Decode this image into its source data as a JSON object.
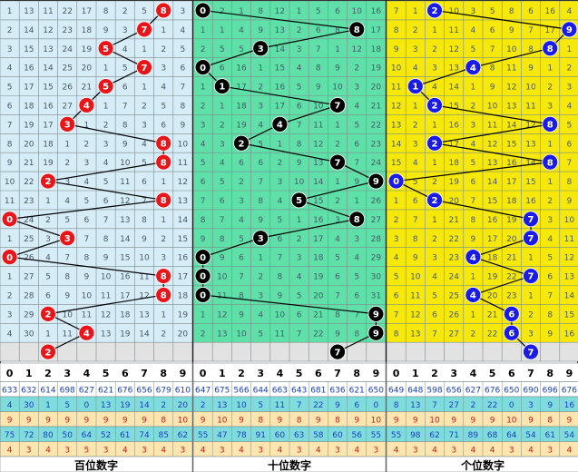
{
  "chart_data": {
    "type": "table",
    "sections": [
      {
        "title": "百位数字",
        "bg": "#d6ecf7",
        "ball_color": "#e8161b",
        "wins": [
          8,
          7,
          5,
          7,
          5,
          4,
          3,
          8,
          8,
          2,
          8,
          0,
          3,
          0,
          8,
          8,
          2,
          4,
          2
        ],
        "last_row_num": [
          0,
          0,
          0,
          0,
          0,
          0,
          0,
          0,
          0,
          0
        ],
        "grid": [
          [
            1,
            13,
            11,
            22,
            17,
            8,
            2,
            5,
            8,
            3
          ],
          [
            2,
            14,
            12,
            23,
            18,
            9,
            3,
            7,
            1,
            4
          ],
          [
            3,
            15,
            13,
            24,
            19,
            5,
            4,
            1,
            2,
            5
          ],
          [
            4,
            16,
            14,
            25,
            20,
            1,
            5,
            7,
            3,
            6
          ],
          [
            5,
            17,
            15,
            26,
            21,
            5,
            6,
            1,
            4,
            7
          ],
          [
            6,
            18,
            16,
            27,
            4,
            1,
            7,
            2,
            5,
            8
          ],
          [
            7,
            19,
            17,
            3,
            1,
            2,
            8,
            3,
            6,
            9
          ],
          [
            8,
            20,
            18,
            1,
            2,
            3,
            9,
            4,
            8,
            10
          ],
          [
            9,
            21,
            19,
            2,
            3,
            4,
            10,
            5,
            8,
            11
          ],
          [
            10,
            22,
            2,
            3,
            4,
            5,
            11,
            6,
            1,
            12
          ],
          [
            11,
            23,
            1,
            4,
            5,
            6,
            12,
            7,
            8,
            13
          ],
          [
            0,
            24,
            2,
            5,
            6,
            7,
            13,
            8,
            1,
            14
          ],
          [
            1,
            25,
            3,
            6,
            7,
            8,
            14,
            9,
            2,
            15
          ],
          [
            0,
            26,
            4,
            7,
            8,
            9,
            15,
            10,
            3,
            16
          ],
          [
            1,
            27,
            5,
            8,
            9,
            10,
            16,
            11,
            8,
            17
          ],
          [
            2,
            28,
            6,
            9,
            10,
            11,
            17,
            12,
            8,
            18
          ],
          [
            3,
            29,
            2,
            10,
            11,
            12,
            18,
            13,
            1,
            19
          ],
          [
            4,
            30,
            1,
            11,
            4,
            13,
            19,
            14,
            2,
            20
          ],
          [
            5,
            31,
            2,
            12,
            1,
            14,
            20,
            15,
            3,
            21
          ]
        ]
      },
      {
        "title": "十位数字",
        "bg": "#5ee0a8",
        "ball_color": "#000000",
        "wins": [
          0,
          8,
          3,
          0,
          1,
          7,
          4,
          2,
          7,
          9,
          5,
          8,
          3,
          0,
          0,
          0,
          9,
          9,
          7
        ],
        "last_row_num": [
          0,
          0,
          0,
          0,
          0,
          0,
          0,
          0,
          0,
          0
        ],
        "grid": [
          [
            0,
            2,
            1,
            8,
            12,
            1,
            5,
            6,
            10,
            16
          ],
          [
            1,
            1,
            4,
            9,
            13,
            2,
            6,
            8,
            11,
            17
          ],
          [
            2,
            5,
            5,
            3,
            14,
            3,
            7,
            1,
            12,
            18
          ],
          [
            0,
            6,
            16,
            1,
            15,
            4,
            8,
            9,
            2,
            19
          ],
          [
            1,
            1,
            17,
            2,
            16,
            5,
            9,
            10,
            3,
            20
          ],
          [
            2,
            1,
            18,
            3,
            17,
            6,
            10,
            7,
            4,
            21
          ],
          [
            3,
            2,
            19,
            4,
            4,
            7,
            11,
            1,
            5,
            22
          ],
          [
            4,
            3,
            2,
            5,
            1,
            8,
            12,
            2,
            6,
            23
          ],
          [
            5,
            4,
            6,
            6,
            2,
            9,
            13,
            7,
            7,
            24
          ],
          [
            6,
            5,
            2,
            7,
            3,
            10,
            14,
            1,
            9,
            25
          ],
          [
            7,
            6,
            3,
            8,
            4,
            5,
            15,
            2,
            1,
            26
          ],
          [
            8,
            7,
            4,
            9,
            5,
            1,
            16,
            3,
            8,
            27
          ],
          [
            9,
            8,
            5,
            3,
            6,
            2,
            17,
            4,
            3,
            28
          ],
          [
            0,
            9,
            6,
            1,
            7,
            3,
            18,
            5,
            4,
            29
          ],
          [
            0,
            10,
            7,
            2,
            8,
            4,
            19,
            6,
            5,
            30
          ],
          [
            0,
            11,
            8,
            3,
            9,
            5,
            20,
            7,
            6,
            31
          ],
          [
            1,
            12,
            9,
            4,
            10,
            6,
            21,
            8,
            7,
            9
          ],
          [
            2,
            13,
            10,
            5,
            11,
            7,
            22,
            9,
            8,
            9
          ],
          [
            3,
            14,
            11,
            6,
            12,
            8,
            23,
            7,
            9,
            1
          ]
        ]
      },
      {
        "title": "个位数字",
        "bg": "#f5e80a",
        "ball_color": "#1b1be8",
        "wins": [
          2,
          9,
          8,
          4,
          1,
          2,
          8,
          2,
          8,
          0,
          2,
          7,
          7,
          4,
          7,
          4,
          6,
          6,
          7
        ],
        "last_row_num": [
          0,
          0,
          0,
          0,
          0,
          0,
          0,
          0,
          0,
          0
        ],
        "grid": [
          [
            7,
            1,
            2,
            10,
            3,
            5,
            8,
            6,
            16,
            4
          ],
          [
            8,
            2,
            1,
            11,
            4,
            6,
            9,
            7,
            17,
            9
          ],
          [
            9,
            3,
            2,
            12,
            5,
            7,
            10,
            8,
            18,
            1
          ],
          [
            10,
            4,
            3,
            13,
            4,
            8,
            11,
            9,
            1,
            2
          ],
          [
            11,
            1,
            4,
            14,
            1,
            9,
            12,
            10,
            2,
            3
          ],
          [
            12,
            1,
            2,
            15,
            2,
            10,
            13,
            11,
            3,
            4
          ],
          [
            13,
            2,
            1,
            16,
            3,
            11,
            14,
            12,
            8,
            5
          ],
          [
            14,
            3,
            2,
            17,
            4,
            12,
            15,
            13,
            1,
            6
          ],
          [
            15,
            4,
            1,
            18,
            5,
            13,
            16,
            14,
            8,
            7
          ],
          [
            0,
            5,
            2,
            19,
            6,
            14,
            17,
            15,
            1,
            8
          ],
          [
            1,
            6,
            2,
            20,
            7,
            15,
            18,
            16,
            2,
            9
          ],
          [
            2,
            7,
            1,
            21,
            8,
            16,
            19,
            7,
            3,
            10
          ],
          [
            3,
            8,
            2,
            22,
            9,
            17,
            20,
            7,
            4,
            11
          ],
          [
            4,
            9,
            3,
            23,
            4,
            18,
            21,
            1,
            5,
            12
          ],
          [
            5,
            10,
            4,
            24,
            1,
            19,
            22,
            7,
            6,
            13
          ],
          [
            6,
            11,
            5,
            25,
            4,
            20,
            23,
            1,
            7,
            14
          ],
          [
            7,
            12,
            6,
            26,
            1,
            21,
            24,
            2,
            8,
            15
          ],
          [
            8,
            13,
            7,
            27,
            2,
            22,
            6,
            3,
            9,
            16
          ],
          [
            9,
            14,
            8,
            28,
            3,
            23,
            1,
            7,
            10,
            17
          ]
        ]
      }
    ],
    "header_digits": [
      "0",
      "1",
      "2",
      "3",
      "4",
      "5",
      "6",
      "7",
      "8",
      "9"
    ],
    "stat_rows": [
      {
        "bg": "#ffffff",
        "color": "#1b3fc4",
        "values": [
          [
            633,
            632,
            614,
            698,
            627,
            621,
            676,
            656,
            679,
            610
          ],
          [
            647,
            675,
            566,
            644,
            663,
            643,
            681,
            636,
            621,
            650
          ],
          [
            649,
            648,
            598,
            656,
            627,
            676,
            650,
            690,
            696,
            676
          ]
        ]
      },
      {
        "bg": "#7fdcdc",
        "color": "#1b3fc4",
        "values": [
          [
            4,
            30,
            1,
            5,
            0,
            13,
            19,
            14,
            2,
            20
          ],
          [
            2,
            13,
            10,
            5,
            11,
            7,
            22,
            9,
            6,
            0
          ],
          [
            8,
            13,
            7,
            27,
            2,
            22,
            0,
            3,
            9,
            16
          ]
        ]
      },
      {
        "bg": "#fde5b0",
        "color": "#c81e1e",
        "values": [
          [
            9,
            9,
            9,
            9,
            9,
            9,
            9,
            9,
            8,
            10
          ],
          [
            9,
            10,
            9,
            8,
            9,
            8,
            9,
            8,
            9,
            10
          ],
          [
            9,
            9,
            10,
            9,
            9,
            9,
            10,
            9,
            8,
            9
          ]
        ]
      },
      {
        "bg": "#7fdcdc",
        "color": "#1b3fc4",
        "values": [
          [
            75,
            72,
            80,
            50,
            64,
            52,
            61,
            74,
            85,
            62
          ],
          [
            55,
            47,
            78,
            91,
            60,
            63,
            58,
            60,
            56,
            55
          ],
          [
            55,
            98,
            62,
            71,
            89,
            68,
            64,
            54,
            61,
            54
          ]
        ]
      },
      {
        "bg": "#fde5b0",
        "color": "#c81e1e",
        "values": [
          [
            4,
            3,
            4,
            3,
            5,
            3,
            4,
            3,
            4,
            3
          ],
          [
            4,
            3,
            4,
            3,
            4,
            3,
            4,
            3,
            4,
            3
          ],
          [
            4,
            3,
            4,
            3,
            4,
            4,
            3,
            4,
            3,
            4
          ]
        ]
      }
    ]
  }
}
